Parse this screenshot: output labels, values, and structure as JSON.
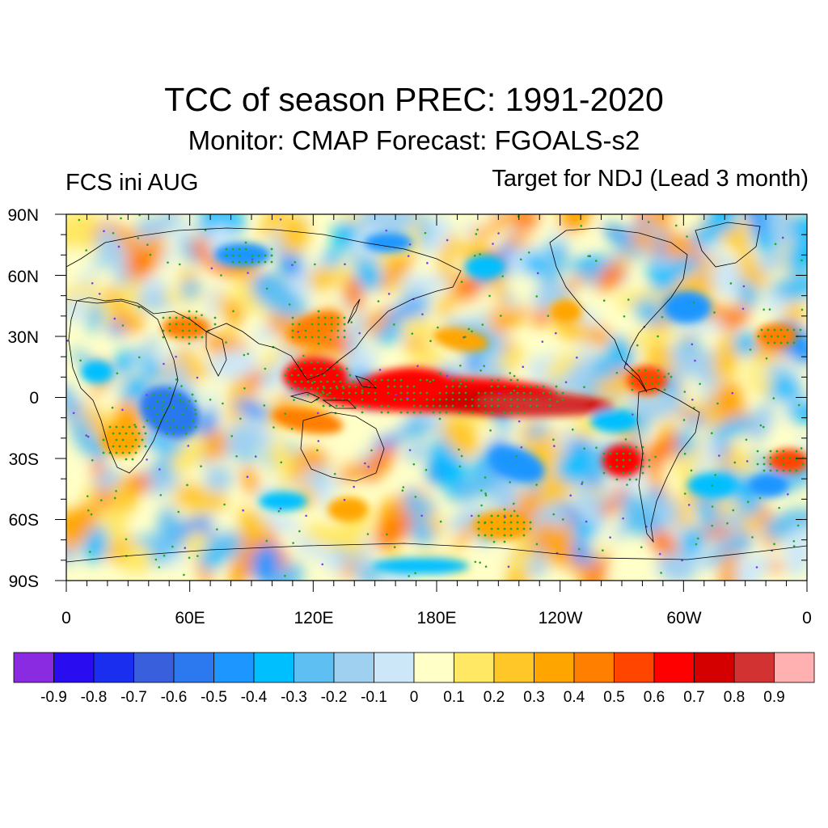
{
  "title": "TCC of season PREC: 1991-2020",
  "subtitle": "Monitor: CMAP   Forecast: FGOALS-s2",
  "left_label": "FCS ini AUG",
  "right_label": "Target for NDJ (Lead 3 month)",
  "map": {
    "projection": "cylindrical-equidistant",
    "lon_range": [
      0,
      360
    ],
    "lat_range": [
      -90,
      90
    ],
    "lat_labels": [
      "90N",
      "60N",
      "30N",
      "0",
      "30S",
      "60S",
      "90S"
    ],
    "lon_labels": [
      "0",
      "60E",
      "120E",
      "180E",
      "120W",
      "60W",
      "0"
    ],
    "stippling": "green dots mark significant correlation",
    "coastline_color": "#000000"
  },
  "colorbar": {
    "colors": [
      "#8a2be2",
      "#2a0cf0",
      "#1a2ef0",
      "#3a5fdc",
      "#2c78ee",
      "#1e96ff",
      "#00bfff",
      "#5ec0f2",
      "#a0d0f0",
      "#cce8f8",
      "#ffffc8",
      "#ffe864",
      "#ffc828",
      "#ffa500",
      "#ff7f00",
      "#ff4500",
      "#ff0000",
      "#d40000",
      "#d23232",
      "#ffb0b0"
    ],
    "labels": [
      "-0.9",
      "-0.8",
      "-0.7",
      "-0.6",
      "-0.5",
      "-0.4",
      "-0.3",
      "-0.2",
      "-0.1",
      "0",
      "0.1",
      "0.2",
      "0.3",
      "0.4",
      "0.5",
      "0.6",
      "0.7",
      "0.8",
      "0.9"
    ]
  }
}
